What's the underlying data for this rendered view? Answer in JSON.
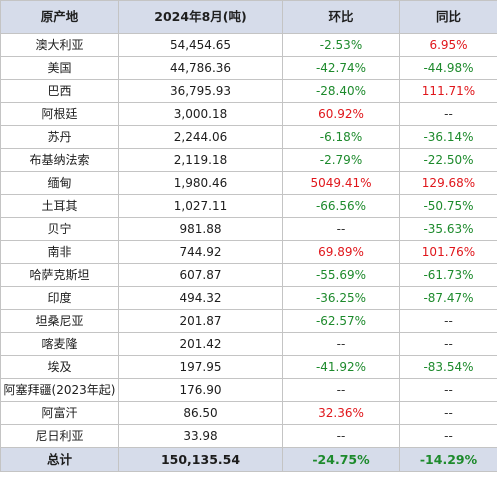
{
  "colors": {
    "header_bg": "#d6dcea",
    "border": "#c4c4c4",
    "negative": "#1d8a2c",
    "positive": "#e0161b"
  },
  "table": {
    "headers": [
      "原产地",
      "2024年8月(吨)",
      "环比",
      "同比"
    ],
    "rows": [
      {
        "origin": "澳大利亚",
        "volume": "54,454.65",
        "mom": "-2.53%",
        "yoy": "6.95%"
      },
      {
        "origin": "美国",
        "volume": "44,786.36",
        "mom": "-42.74%",
        "yoy": "-44.98%"
      },
      {
        "origin": "巴西",
        "volume": "36,795.93",
        "mom": "-28.40%",
        "yoy": "111.71%"
      },
      {
        "origin": "阿根廷",
        "volume": "3,000.18",
        "mom": "60.92%",
        "yoy": "--"
      },
      {
        "origin": "苏丹",
        "volume": "2,244.06",
        "mom": "-6.18%",
        "yoy": "-36.14%"
      },
      {
        "origin": "布基纳法索",
        "volume": "2,119.18",
        "mom": "-2.79%",
        "yoy": "-22.50%"
      },
      {
        "origin": "缅甸",
        "volume": "1,980.46",
        "mom": "5049.41%",
        "yoy": "129.68%"
      },
      {
        "origin": "土耳其",
        "volume": "1,027.11",
        "mom": "-66.56%",
        "yoy": "-50.75%"
      },
      {
        "origin": "贝宁",
        "volume": "981.88",
        "mom": "--",
        "yoy": "-35.63%"
      },
      {
        "origin": "南非",
        "volume": "744.92",
        "mom": "69.89%",
        "yoy": "101.76%"
      },
      {
        "origin": "哈萨克斯坦",
        "volume": "607.87",
        "mom": "-55.69%",
        "yoy": "-61.73%"
      },
      {
        "origin": "印度",
        "volume": "494.32",
        "mom": "-36.25%",
        "yoy": "-87.47%"
      },
      {
        "origin": "坦桑尼亚",
        "volume": "201.87",
        "mom": "-62.57%",
        "yoy": "--"
      },
      {
        "origin": "喀麦隆",
        "volume": "201.42",
        "mom": "--",
        "yoy": "--"
      },
      {
        "origin": "埃及",
        "volume": "197.95",
        "mom": "-41.92%",
        "yoy": "-83.54%"
      },
      {
        "origin": "阿塞拜疆(2023年起)",
        "volume": "176.90",
        "mom": "--",
        "yoy": "--"
      },
      {
        "origin": "阿富汗",
        "volume": "86.50",
        "mom": "32.36%",
        "yoy": "--"
      },
      {
        "origin": "尼日利亚",
        "volume": "33.98",
        "mom": "--",
        "yoy": "--"
      }
    ],
    "total": {
      "label": "总计",
      "volume": "150,135.54",
      "mom": "-24.75%",
      "yoy": "-14.29%"
    }
  }
}
